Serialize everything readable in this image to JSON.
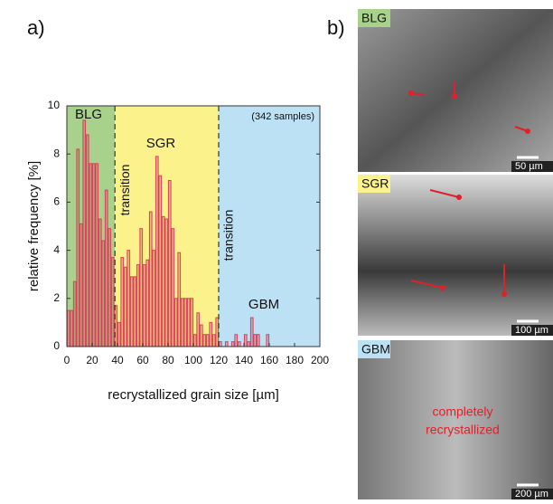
{
  "panel_labels": [
    "a)",
    "b)"
  ],
  "chart_data": {
    "type": "histogram",
    "xlabel": "recrystallized grain size [µm]",
    "ylabel": "relative frequency [%]",
    "annotation": "(342 samples)",
    "transition_label": "transition",
    "bins": [
      0,
      2.5,
      5,
      7.5,
      10,
      12.5,
      15,
      17.5,
      20,
      22.5,
      25,
      27.5,
      30,
      32.5,
      35,
      37.5,
      40,
      42.5,
      45,
      47.5,
      50,
      52.5,
      55,
      57.5,
      60,
      62.5,
      65,
      67.5,
      70,
      72.5,
      75,
      77.5,
      80,
      82.5,
      85,
      87.5,
      90,
      92.5,
      95,
      97.5,
      100,
      102.5,
      105,
      107.5,
      110,
      112.5,
      115,
      117.5,
      120,
      122.5,
      125,
      127.5,
      130,
      132.5,
      135,
      137.5,
      140,
      142.5,
      145,
      147.5,
      150,
      152.5,
      155,
      157.5,
      160,
      162.5,
      165
    ],
    "values": [
      1.5,
      1.5,
      2.7,
      8.2,
      5.1,
      9.4,
      8.8,
      7.6,
      7.6,
      7.6,
      5.3,
      4.4,
      6.5,
      4.9,
      3.7,
      1.7,
      1.0,
      3.7,
      3.3,
      4.0,
      2.9,
      2.9,
      3.4,
      4.9,
      3.4,
      3.6,
      5.6,
      4.0,
      7.9,
      7.1,
      5.4,
      5.3,
      6.9,
      4.9,
      2.0,
      3.9,
      2.0,
      2.0,
      2.0,
      2.0,
      0.5,
      1.4,
      0.9,
      0.5,
      0.5,
      1.0,
      0.5,
      1.2,
      0.2,
      0,
      0.2,
      0,
      0.2,
      0.5,
      0.2,
      0,
      0.5,
      0.2,
      1.2,
      0.5,
      0.5,
      0,
      0,
      0.5,
      0,
      0
    ],
    "color": "#d9405a",
    "regions": [
      {
        "name": "BLG",
        "from": 0,
        "to": 38,
        "color": "#a8d18c"
      },
      {
        "name": "SGR",
        "from": 38,
        "to": 120,
        "color": "#fbf28c"
      },
      {
        "name": "GBM",
        "from": 120,
        "to": 200,
        "color": "#bde1f4"
      }
    ],
    "xlim": [
      0,
      200
    ],
    "xticks": [
      0,
      20,
      40,
      60,
      80,
      100,
      120,
      140,
      160,
      180,
      200
    ],
    "ylim": [
      0,
      10
    ],
    "yticks": [
      0,
      2,
      4,
      6,
      8,
      10
    ]
  },
  "micrographs": [
    {
      "label": "BLG",
      "scale_bar": "50 µm"
    },
    {
      "label": "SGR",
      "scale_bar": "100 µm"
    },
    {
      "label": "GBM",
      "scale_bar": "200 µm"
    }
  ],
  "micrograph_note": [
    "completely",
    "recrystallized"
  ]
}
